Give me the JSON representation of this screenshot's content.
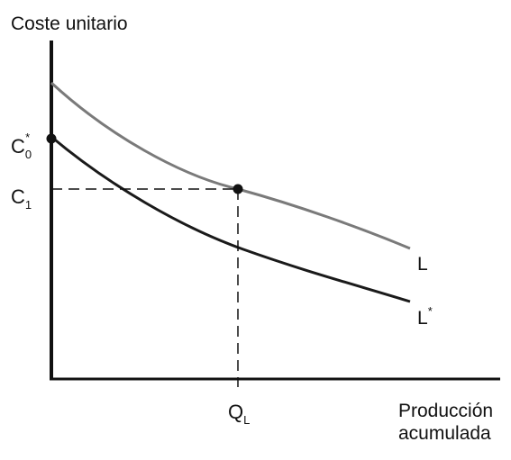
{
  "chart_data": {
    "type": "line",
    "ylabel": "Coste unitario",
    "xlabel_line1": "Producción",
    "xlabel_line2": "acumulada",
    "x_tick": {
      "main": "Q",
      "sub": "L"
    },
    "y_ticks": [
      {
        "main": "C",
        "sub": "0",
        "sup": "*"
      },
      {
        "main": "C",
        "sub": "1"
      }
    ],
    "series": [
      {
        "name": "L",
        "color": "#7a7a7a"
      },
      {
        "name": "L",
        "name_sup": "*",
        "color": "#1a1a1a"
      }
    ],
    "points_labeled": [
      "C0*",
      "QL-C1"
    ],
    "grid": false,
    "axis_color": "#111111"
  }
}
